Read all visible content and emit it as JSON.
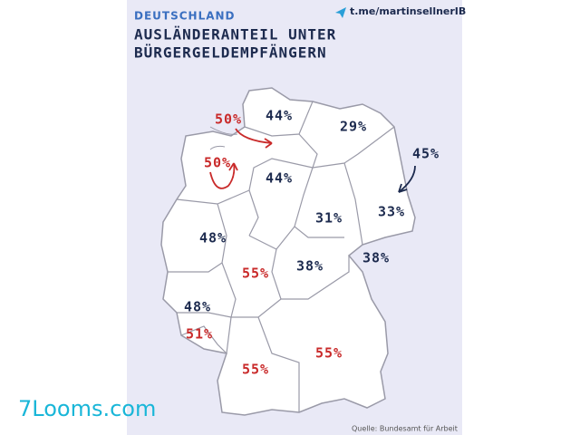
{
  "header": {
    "kicker": "DEUTSCHLAND",
    "title_lines": [
      "AUSLÄNDERANTEIL UNTER",
      "BÜRGERGELDEMPFÄNGERN"
    ],
    "channel": "t.me/martinsellnerIB"
  },
  "regions": [
    {
      "label": "50%",
      "color": "#c92a2a"
    },
    {
      "label": "44%",
      "color": "#1c2a4e"
    },
    {
      "label": "29%",
      "color": "#1c2a4e"
    },
    {
      "label": "45%",
      "color": "#1c2a4e"
    },
    {
      "label": "50%",
      "color": "#c92a2a"
    },
    {
      "label": "44%",
      "color": "#1c2a4e"
    },
    {
      "label": "31%",
      "color": "#1c2a4e"
    },
    {
      "label": "33%",
      "color": "#1c2a4e"
    },
    {
      "label": "48%",
      "color": "#1c2a4e"
    },
    {
      "label": "55%",
      "color": "#c92a2a"
    },
    {
      "label": "38%",
      "color": "#1c2a4e"
    },
    {
      "label": "38%",
      "color": "#1c2a4e"
    },
    {
      "label": "48%",
      "color": "#1c2a4e"
    },
    {
      "label": "51%",
      "color": "#c92a2a"
    },
    {
      "label": "55%",
      "color": "#c92a2a"
    },
    {
      "label": "55%",
      "color": "#c92a2a"
    }
  ],
  "footer": {
    "source": "Quelle: Bundesamt für Arbeit",
    "watermark": "7Looms.com"
  }
}
